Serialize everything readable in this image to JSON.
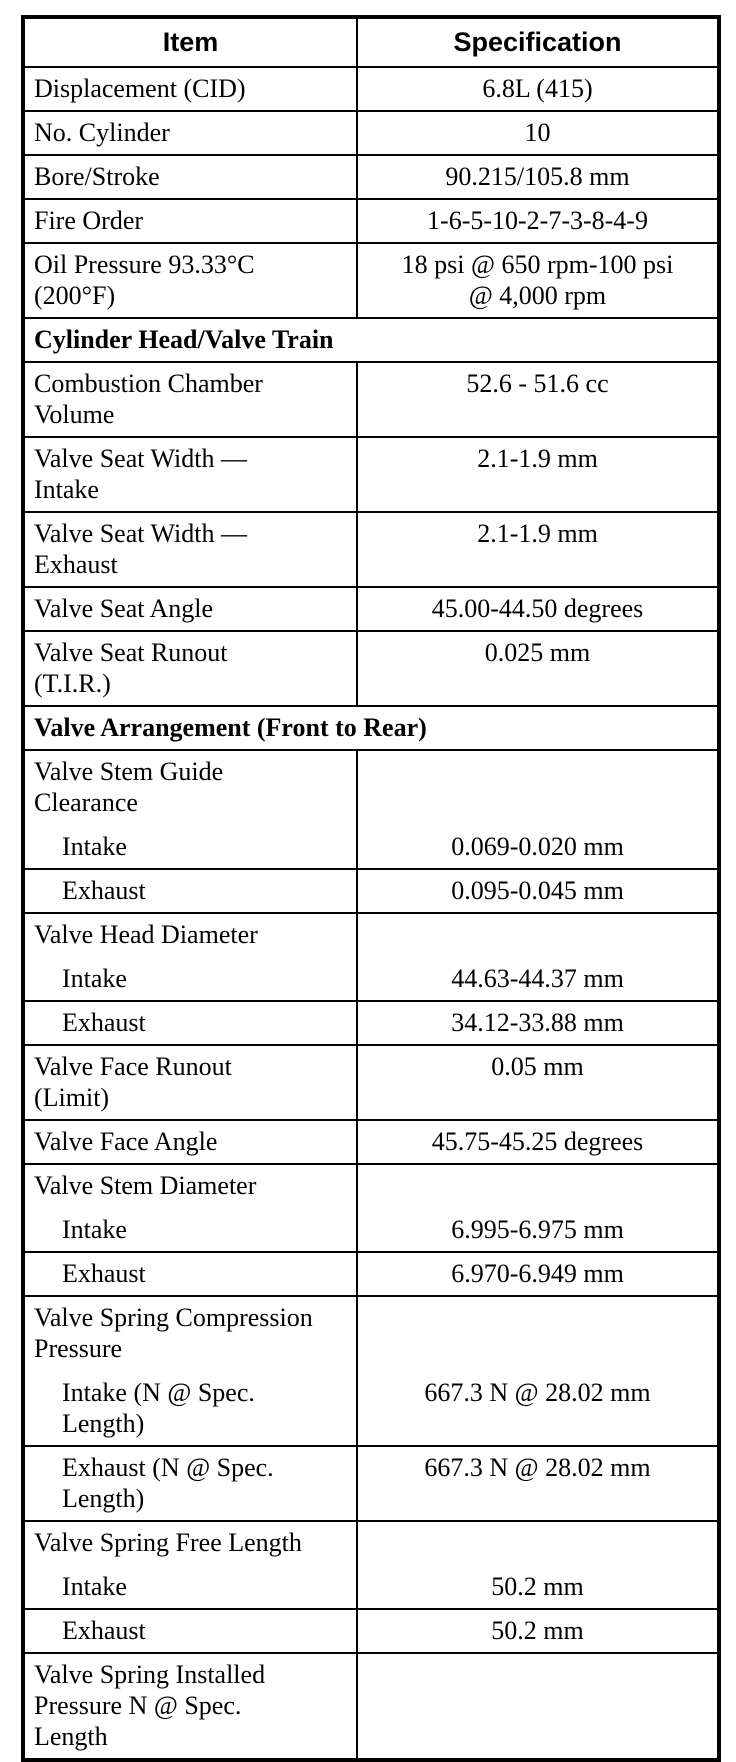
{
  "colors": {
    "text": "#000000",
    "border": "#000000",
    "background": "#ffffff"
  },
  "table": {
    "columns": [
      "Item",
      "Specification"
    ],
    "rows": [
      {
        "item": "Displacement (CID)",
        "spec": "6.8L (415)"
      },
      {
        "item": "No. Cylinder",
        "spec": "10"
      },
      {
        "item": "Bore/Stroke",
        "spec": "90.215/105.8 mm"
      },
      {
        "item": "Fire Order",
        "spec": "1-6-5-10-2-7-3-8-4-9"
      },
      {
        "item": "Oil Pressure 93.33°C\n(200°F)",
        "spec": "18 psi @ 650 rpm-100 psi\n@ 4,000 rpm"
      },
      {
        "section": "Cylinder Head/Valve Train"
      },
      {
        "item": "Combustion Chamber\nVolume",
        "spec": "52.6 - 51.6 cc"
      },
      {
        "item": "Valve Seat Width —\nIntake",
        "spec": "2.1-1.9 mm"
      },
      {
        "item": "Valve Seat Width —\nExhaust",
        "spec": "2.1-1.9 mm"
      },
      {
        "item": "Valve Seat Angle",
        "spec": "45.00-44.50 degrees"
      },
      {
        "item": "Valve Seat Runout\n(T.I.R.)",
        "spec": "0.025 mm"
      },
      {
        "section": "Valve Arrangement (Front to Rear)"
      },
      {
        "title": "Valve Stem Guide\nClearance",
        "item": "Intake",
        "spec": "0.069-0.020 mm",
        "indent": true
      },
      {
        "item": "Exhaust",
        "spec": "0.095-0.045 mm",
        "indent": true
      },
      {
        "title": "Valve Head Diameter",
        "item": "Intake",
        "spec": "44.63-44.37 mm",
        "indent": true
      },
      {
        "item": "Exhaust",
        "spec": "34.12-33.88 mm",
        "indent": true
      },
      {
        "item": "Valve Face Runout\n(Limit)",
        "spec": "0.05 mm"
      },
      {
        "item": "Valve Face Angle",
        "spec": "45.75-45.25 degrees"
      },
      {
        "title": "Valve Stem Diameter",
        "item": "Intake",
        "spec": "6.995-6.975 mm",
        "indent": true
      },
      {
        "item": "Exhaust",
        "spec": "6.970-6.949 mm",
        "indent": true
      },
      {
        "title": "Valve Spring Compression\nPressure",
        "item": "Intake (N @ Spec.\nLength)",
        "spec": "667.3 N @ 28.02 mm",
        "indent": true
      },
      {
        "item": "Exhaust (N @ Spec.\nLength)",
        "spec": "667.3 N @ 28.02 mm",
        "indent": true
      },
      {
        "title": "Valve Spring Free Length",
        "item": "Intake",
        "spec": "50.2 mm",
        "indent": true
      },
      {
        "item": "Exhaust",
        "spec": "50.2 mm",
        "indent": true
      },
      {
        "item": "Valve Spring Installed\nPressure N @ Spec.\nLength",
        "spec": ""
      }
    ]
  }
}
